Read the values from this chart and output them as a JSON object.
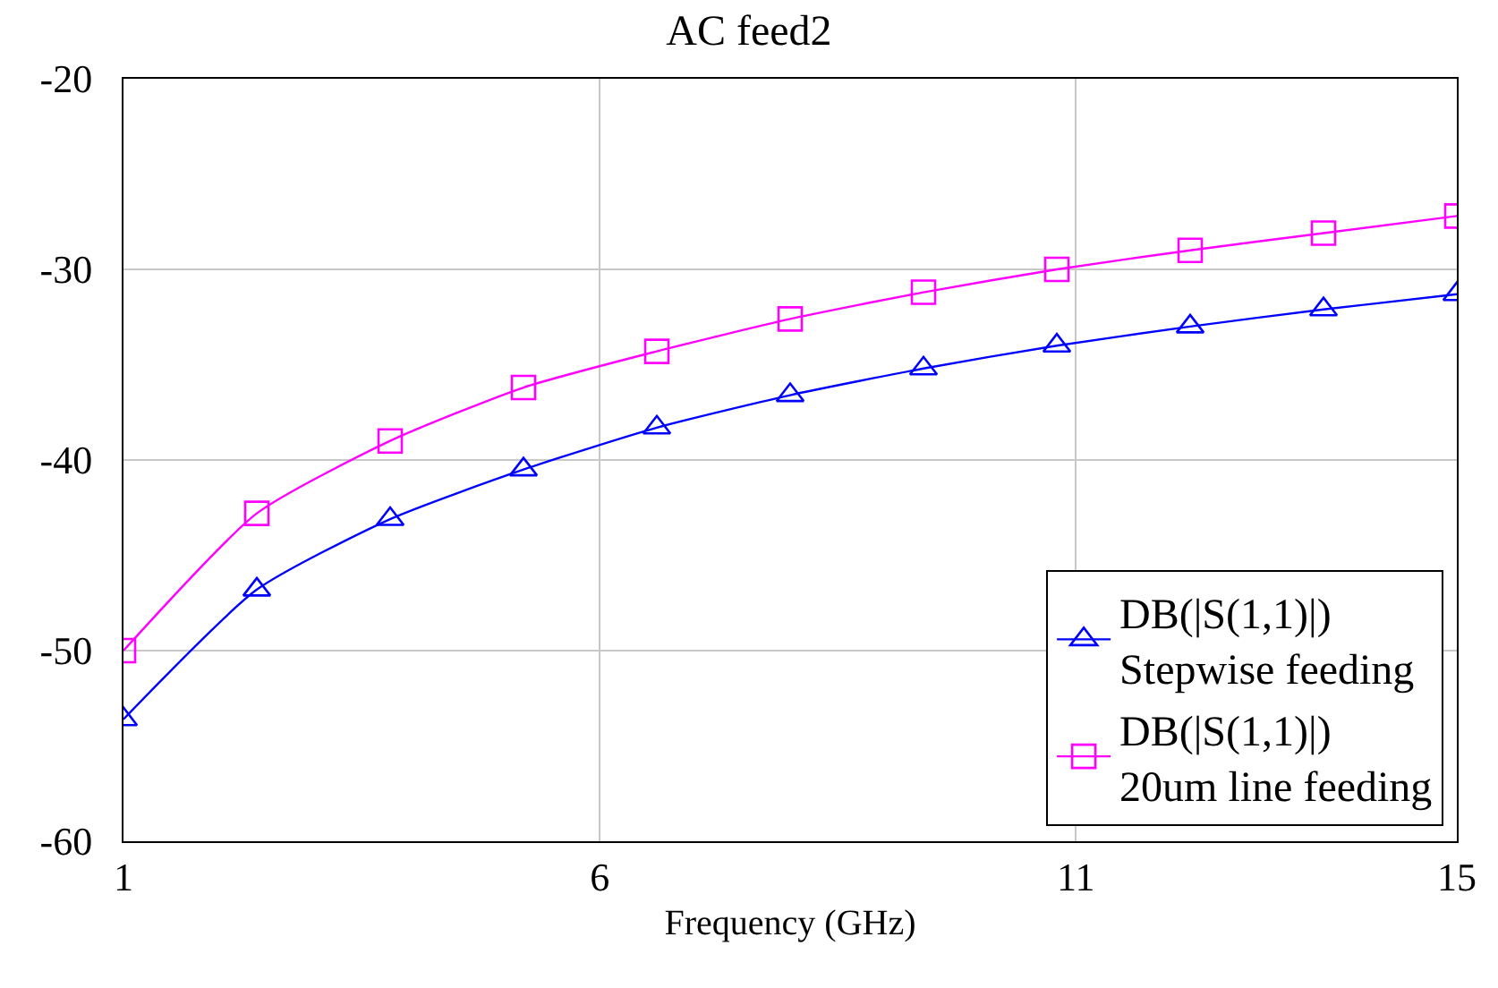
{
  "chart_data": {
    "type": "line",
    "title": "AC feed2",
    "xlabel": "Frequency (GHz)",
    "x": [
      1,
      2.4,
      3.8,
      5.2,
      6.6,
      8.0,
      9.4,
      10.8,
      12.2,
      13.6,
      15
    ],
    "series": [
      {
        "name": "DB(|S(1,1)|)\nStepwise feeding",
        "color": "#0000ff",
        "marker": "triangle",
        "values": [
          -53.6,
          -46.8,
          -43.1,
          -40.5,
          -38.3,
          -36.6,
          -35.2,
          -34.0,
          -33.0,
          -32.1,
          -31.3
        ]
      },
      {
        "name": "DB(|S(1,1)|)\n20um line feeding",
        "color": "#ff00ff",
        "marker": "square",
        "values": [
          -50.0,
          -42.8,
          -39.0,
          -36.2,
          -34.3,
          -32.6,
          -31.2,
          -30.0,
          -29.0,
          -28.1,
          -27.2
        ]
      }
    ],
    "xlim": [
      1,
      15
    ],
    "xticks": [
      1,
      6,
      11,
      15
    ],
    "ylim": [
      -60,
      -20
    ],
    "yticks": [
      -60,
      -50,
      -40,
      -30,
      -20
    ],
    "grid": true,
    "legend": "bottom right",
    "line_style": "solid"
  }
}
